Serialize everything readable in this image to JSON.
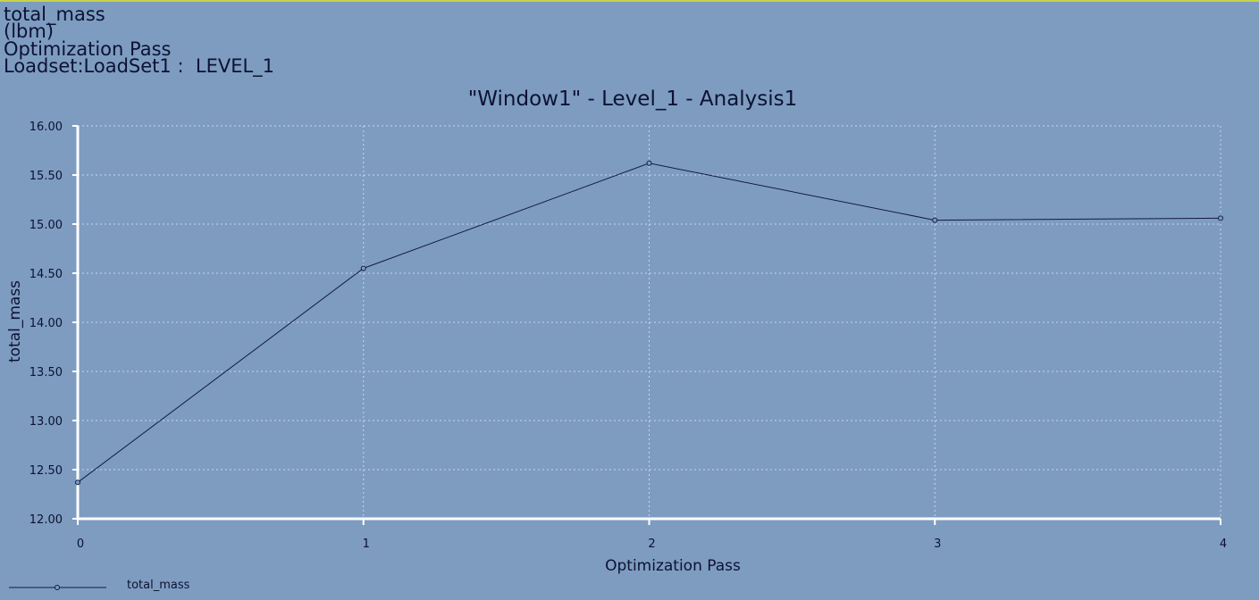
{
  "info": {
    "quantity": "total_mass",
    "unit": "(lbm)",
    "x_quantity": "Optimization Pass",
    "loadset": "Loadset:LoadSet1 :  LEVEL_1"
  },
  "colors": {
    "background": "#7d9cc0",
    "line": "#141a44",
    "axis": "#ffffff",
    "grid": "#c8d8ea"
  },
  "chart_data": {
    "type": "line",
    "title": "\"Window1\" - Level_1 - Analysis1",
    "xlabel": "Optimization Pass",
    "ylabel": "total_mass",
    "x": [
      0,
      1,
      2,
      3,
      4
    ],
    "x_ticks": [
      "0",
      "1",
      "2",
      "3",
      "4"
    ],
    "y_ticks": [
      "12.00",
      "12.50",
      "13.00",
      "13.50",
      "14.00",
      "14.50",
      "15.00",
      "15.50",
      "16.00"
    ],
    "xlim": [
      0,
      4
    ],
    "ylim": [
      12.0,
      16.0
    ],
    "grid": true,
    "legend_position": "bottom-left",
    "series": [
      {
        "name": "total_mass",
        "values": [
          12.37,
          14.55,
          15.62,
          15.04,
          15.06
        ],
        "marker": "circle"
      }
    ]
  }
}
